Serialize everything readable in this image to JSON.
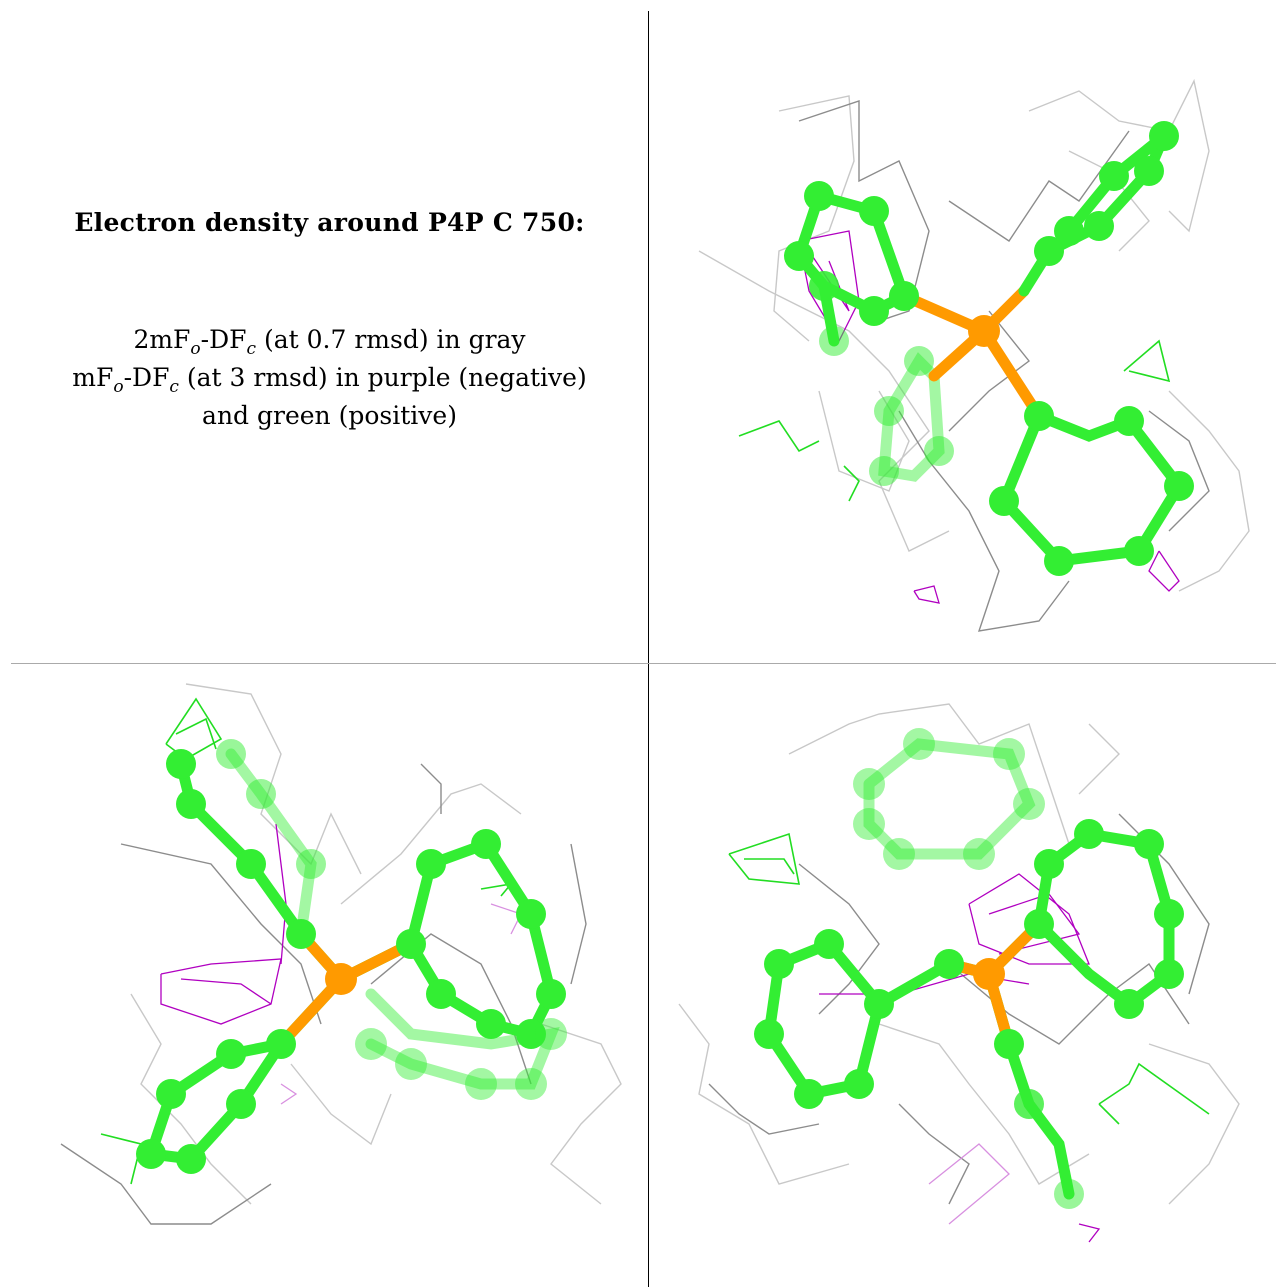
{
  "figure": {
    "title": "Electron density around P4P C 750:",
    "legend_line1": {
      "prefix": "2mF",
      "sub1": "o",
      "mid": "-DF",
      "sub2": "c",
      "suffix": " (at 0.7 rmsd) in gray"
    },
    "legend_line2": {
      "prefix": "mF",
      "sub1": "o",
      "mid": "-DF",
      "sub2": "c",
      "suffix": " (at 3 rmsd) in purple (negative)"
    },
    "legend_line3": "and green (positive)"
  },
  "colors": {
    "carbon": "#33ee33",
    "phosphorus": "#ff9a00",
    "density_2fofc": "#8c8c8c",
    "density_negative": "#b000c0",
    "density_positive": "#22dd22"
  }
}
